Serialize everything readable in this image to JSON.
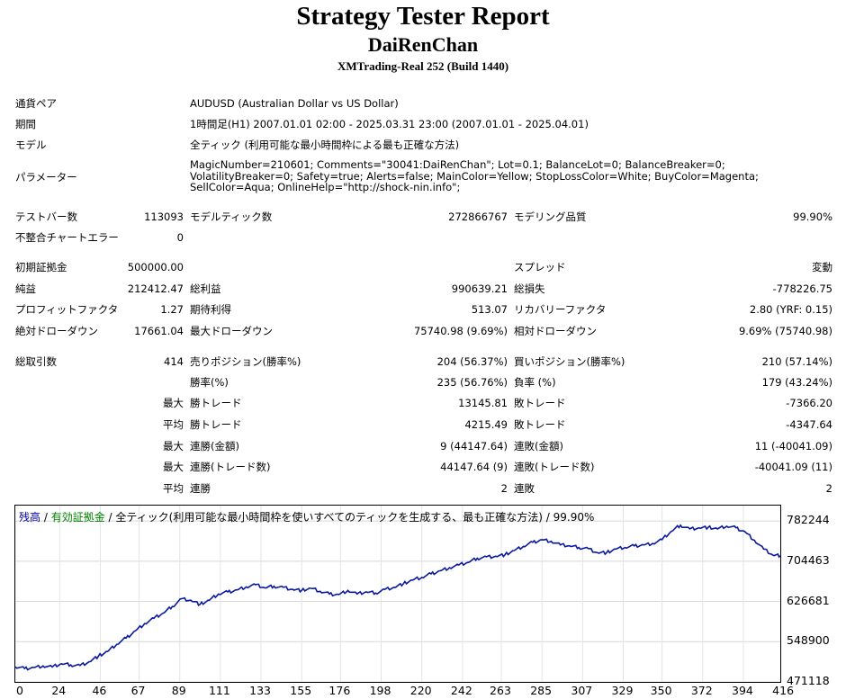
{
  "header": {
    "title": "Strategy Tester Report",
    "ea_name": "DaiRenChan",
    "server": "XMTrading-Real 252 (Build 1440)"
  },
  "info": [
    {
      "label": "通貨ペア",
      "value": "AUDUSD (Australian Dollar vs US Dollar)"
    },
    {
      "label": "期間",
      "value": "1時間足(H1) 2007.01.01 02:00 - 2025.03.31 23:00 (2007.01.01 - 2025.04.01)"
    },
    {
      "label": "モデル",
      "value": "全ティック (利用可能な最小時間枠による最も正確な方法)"
    },
    {
      "label": "パラメーター",
      "value": "MagicNumber=210601; Comments=\"30041:DaiRenChan\"; Lot=0.1; BalanceLot=0; BalanceBreaker=0; VolatilityBreaker=0; Safety=true; Alerts=false; MainColor=Yellow; StopLossColor=White; BuyColor=Magenta; SellColor=Aqua; OnlineHelp=\"http://shock-nin.info\";"
    }
  ],
  "stats": {
    "bars_label": "テストバー数",
    "bars": "113093",
    "ticks_label": "モデルティック数",
    "ticks": "272866767",
    "quality_label": "モデリング品質",
    "quality": "99.90%",
    "mismatch_label": "不整合チャートエラー",
    "mismatch": "0",
    "deposit_label": "初期証拠金",
    "deposit": "500000.00",
    "spread_label": "スプレッド",
    "spread": "変動",
    "net_label": "純益",
    "net": "212412.47",
    "gross_profit_label": "総利益",
    "gross_profit": "990639.21",
    "gross_loss_label": "総損失",
    "gross_loss": "-778226.75",
    "pf_label": "プロフィットファクタ",
    "pf": "1.27",
    "payoff_label": "期待利得",
    "payoff": "513.07",
    "recovery_label": "リカバリーファクタ",
    "recovery": "2.80 (YRF: 0.15)",
    "abs_dd_label": "絶対ドローダウン",
    "abs_dd": "17661.04",
    "max_dd_label": "最大ドローダウン",
    "max_dd": "75740.98 (9.69%)",
    "rel_dd_label": "相対ドローダウン",
    "rel_dd": "9.69% (75740.98)",
    "trades_label": "総取引数",
    "trades": "414",
    "short_label": "売りポジション(勝率%)",
    "short": "204 (56.37%)",
    "long_label": "買いポジション(勝率%)",
    "long": "210 (57.14%)",
    "win_rate_label": "勝率(%)",
    "win_rate": "235 (56.76%)",
    "loss_rate_label": "負率 (%)",
    "loss_rate": "179 (43.24%)",
    "max_word": "最大",
    "avg_word": "平均",
    "win_trade_label": "勝トレード",
    "lose_trade_label": "敗トレード",
    "largest_win": "13145.81",
    "largest_loss": "-7366.20",
    "avg_win": "4215.49",
    "avg_loss": "-4347.64",
    "cons_win_amt_label": "連勝(金額)",
    "cons_win_amt": "9 (44147.64)",
    "cons_loss_amt_label": "連敗(金額)",
    "cons_loss_amt": "11 (-40041.09)",
    "cons_win_cnt_label": "連勝(トレード数)",
    "cons_win_cnt": "44147.64 (9)",
    "cons_loss_cnt_label": "連敗(トレード数)",
    "cons_loss_cnt": "-40041.09 (11)",
    "avg_cons_win_label": "連勝",
    "avg_cons_win": "2",
    "avg_cons_loss_label": "連敗",
    "avg_cons_loss": "2"
  },
  "legend": {
    "balance": "残高",
    "sep1": " / ",
    "equity": "有効証拠金",
    "rest": " / 全ティック(利用可能な最小時間枠を使いすべてのティックを生成する、最も正確な方法) / 99.90%"
  },
  "chart_data": {
    "type": "line",
    "y_ticks": [
      "782244",
      "704463",
      "626681",
      "548900",
      "471118"
    ],
    "x_ticks": [
      "0",
      "24",
      "46",
      "67",
      "89",
      "111",
      "133",
      "155",
      "176",
      "198",
      "220",
      "242",
      "263",
      "285",
      "307",
      "329",
      "350",
      "372",
      "394",
      "416"
    ],
    "xlim": [
      0,
      414
    ],
    "ylim": [
      471118,
      812000
    ],
    "grid": true,
    "series": [
      {
        "color": "#0a1aa0",
        "x": [
          0,
          5,
          10,
          15,
          20,
          25,
          30,
          35,
          40,
          45,
          50,
          55,
          60,
          65,
          70,
          75,
          80,
          85,
          90,
          95,
          100,
          105,
          110,
          115,
          120,
          125,
          130,
          135,
          140,
          145,
          150,
          155,
          160,
          165,
          170,
          175,
          180,
          185,
          190,
          195,
          200,
          205,
          210,
          215,
          220,
          225,
          230,
          235,
          240,
          245,
          250,
          255,
          260,
          265,
          270,
          275,
          280,
          285,
          290,
          295,
          300,
          305,
          310,
          315,
          320,
          325,
          330,
          335,
          340,
          345,
          350,
          355,
          360,
          365,
          370,
          375,
          380,
          385,
          390,
          395,
          400,
          405,
          410,
          414
        ],
        "values": [
          500000,
          497000,
          499000,
          502000,
          500000,
          506000,
          504000,
          503000,
          510000,
          521000,
          530000,
          544000,
          556000,
          570000,
          584000,
          594000,
          604000,
          617000,
          632000,
          629000,
          621000,
          629000,
          641000,
          645000,
          649000,
          655000,
          659000,
          653000,
          656000,
          654000,
          650000,
          648000,
          652000,
          646000,
          641000,
          640000,
          648000,
          641000,
          645000,
          643000,
          650000,
          654000,
          661000,
          668000,
          673000,
          680000,
          686000,
          692000,
          697000,
          702000,
          710000,
          713000,
          714000,
          717000,
          725000,
          733000,
          741000,
          746000,
          743000,
          736000,
          734000,
          731000,
          729000,
          721000,
          721000,
          728000,
          731000,
          734000,
          736000,
          739000,
          746000,
          762000,
          774000,
          767000,
          769000,
          770000,
          767000,
          772000,
          769000,
          761000,
          745000,
          728000,
          716000,
          715000
        ]
      }
    ]
  }
}
